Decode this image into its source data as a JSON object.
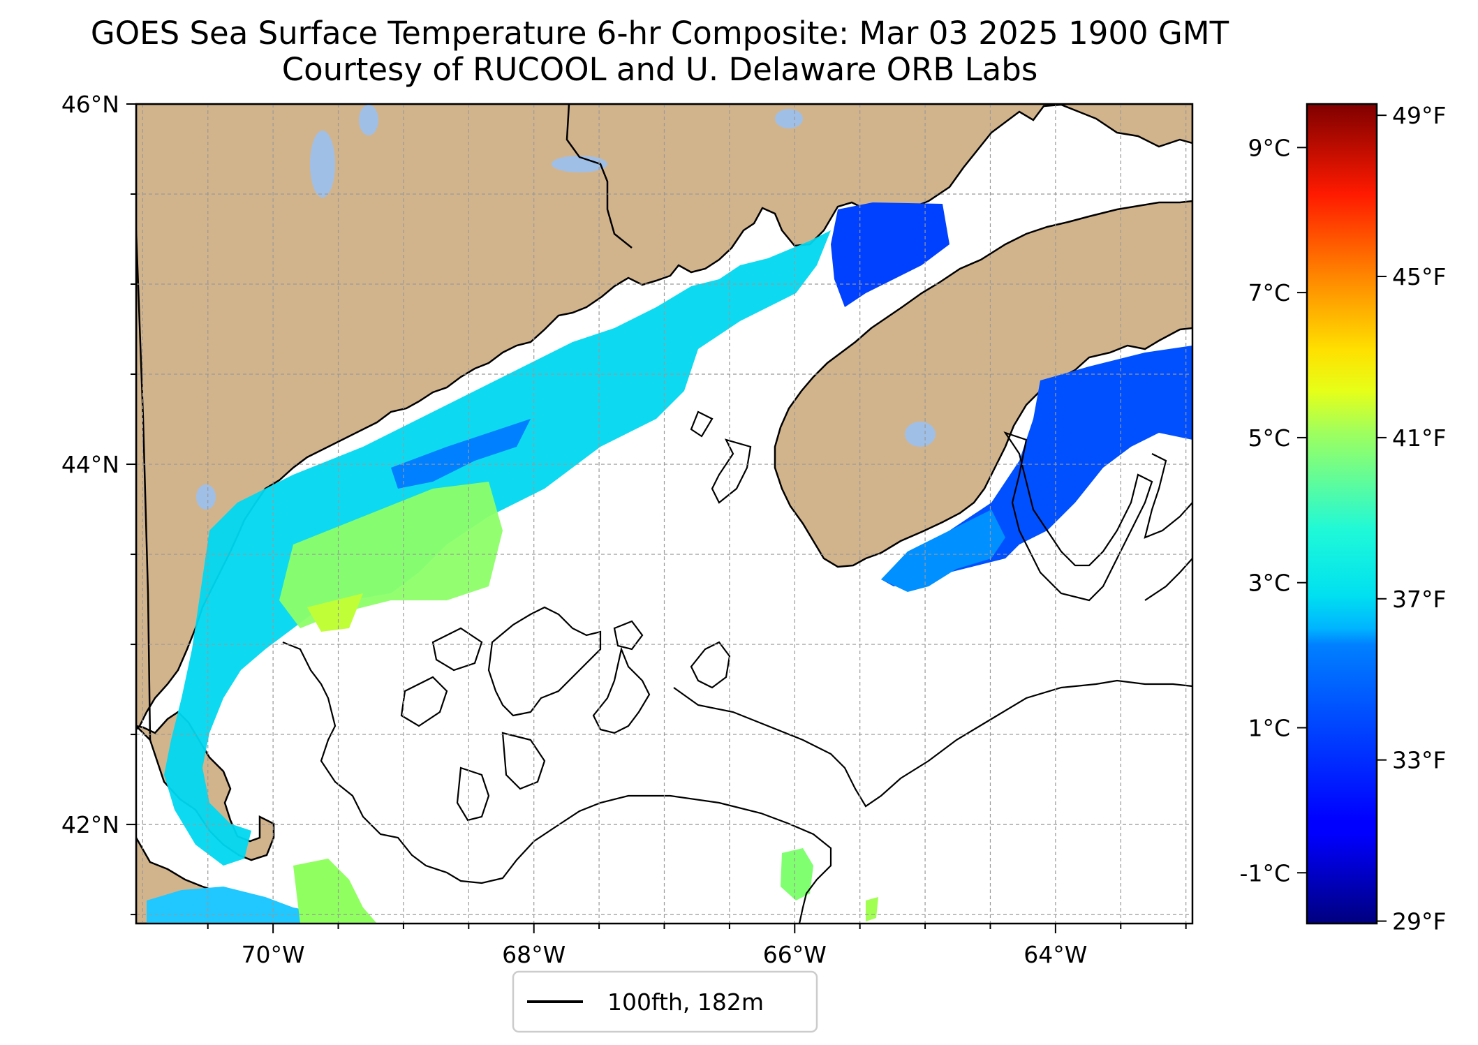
{
  "title": "GOES Sea Surface Temperature 6-hr Composite: Mar 03 2025 1900 GMT",
  "subtitle": "Courtesy of RUCOOL and U. Delaware ORB Labs",
  "map": {
    "lon_range": [
      -71.05,
      -62.95
    ],
    "lat_range": [
      41.45,
      46.0
    ],
    "lon_ticks": [
      {
        "value": -70,
        "label": "70°W"
      },
      {
        "value": -68,
        "label": "68°W"
      },
      {
        "value": -66,
        "label": "66°W"
      },
      {
        "value": -64,
        "label": "64°W"
      }
    ],
    "lat_ticks": [
      {
        "value": 46,
        "label": "46°N"
      },
      {
        "value": 44,
        "label": "44°N"
      },
      {
        "value": 42,
        "label": "42°N"
      }
    ],
    "grid": true,
    "land_color": "#d2b48c",
    "water_color": "#a0bfe6",
    "ocean_nodata_color": "#ffffff"
  },
  "colorbar": {
    "colormap": "jet",
    "range_c": [
      -1.7,
      9.6
    ],
    "celsius_ticks": [
      {
        "value": 9,
        "label": "9°C"
      },
      {
        "value": 7,
        "label": "7°C"
      },
      {
        "value": 5,
        "label": "5°C"
      },
      {
        "value": 3,
        "label": "3°C"
      },
      {
        "value": 1,
        "label": "1°C"
      },
      {
        "value": -1,
        "label": "-1°C"
      }
    ],
    "fahrenheit_ticks": [
      {
        "value": 49,
        "label": "49°F"
      },
      {
        "value": 45,
        "label": "45°F"
      },
      {
        "value": 41,
        "label": "41°F"
      },
      {
        "value": 37,
        "label": "37°F"
      },
      {
        "value": 33,
        "label": "33°F"
      },
      {
        "value": 29,
        "label": "29°F"
      }
    ]
  },
  "legend": {
    "placement": "bottom-center",
    "entries": [
      {
        "label": "100fth, 182m",
        "style": "solid-black-line"
      }
    ]
  }
}
